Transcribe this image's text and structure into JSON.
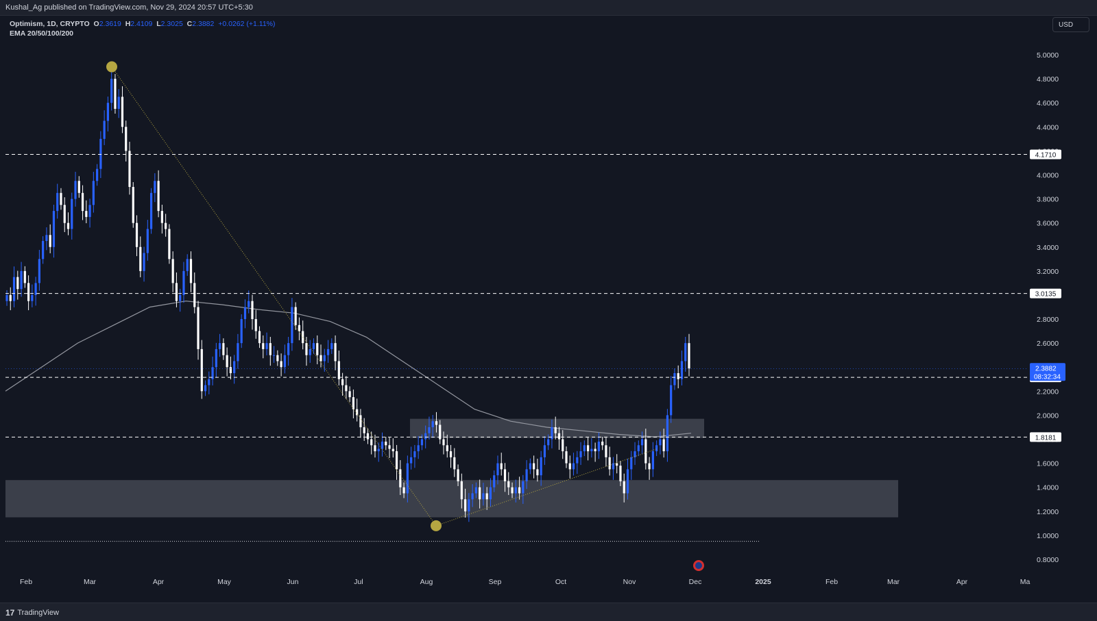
{
  "header": {
    "published": "Kushal_Ag published on TradingView.com, Nov 29, 2024 20:57 UTC+5:30"
  },
  "legend": {
    "symbol": "Optimism, 1D, CRYPTO",
    "o_label": "O",
    "o": "2.3619",
    "h_label": "H",
    "h": "2.4109",
    "l_label": "L",
    "l": "2.3025",
    "c_label": "C",
    "c": "2.3882",
    "change": "+0.0262 (+1.11%)",
    "indicator": "EMA 20/50/100/200"
  },
  "currency": "USD",
  "footer": {
    "brand": "TradingView"
  },
  "chart_data": {
    "type": "candlestick",
    "title": "Optimism, 1D, CRYPTO",
    "y_axis_ticks": [
      "5.0000",
      "4.8000",
      "4.6000",
      "4.4000",
      "4.2000",
      "4.0000",
      "3.8000",
      "3.6000",
      "3.4000",
      "3.2000",
      "3.0000",
      "2.8000",
      "2.6000",
      "2.4000",
      "2.2000",
      "2.0000",
      "1.8000",
      "1.6000",
      "1.4000",
      "1.2000",
      "1.0000",
      "0.8000"
    ],
    "ylim": [
      0.75,
      5.1
    ],
    "x_axis_ticks": [
      "Feb",
      "Mar",
      "Apr",
      "May",
      "Jun",
      "Jul",
      "Aug",
      "Sep",
      "Oct",
      "Nov",
      "Dec",
      "2025",
      "Feb",
      "Mar",
      "Apr",
      "Ma"
    ],
    "horizontal_levels": [
      {
        "price": "4.1710",
        "value": 4.171,
        "style": "dashed"
      },
      {
        "price": "3.0135",
        "value": 3.0135,
        "style": "dashed"
      },
      {
        "price": "2.3153",
        "value": 2.3153,
        "style": "dashed"
      },
      {
        "price": "1.8181",
        "value": 1.8181,
        "style": "dashed"
      }
    ],
    "current_price": {
      "price": "2.3882",
      "countdown": "08:32:34",
      "value": 2.3882
    },
    "zones": [
      {
        "name": "upper-resistance-zone",
        "y_range": [
          1.81,
          1.97
        ]
      },
      {
        "name": "lower-support-zone",
        "y_range": [
          1.15,
          1.46
        ]
      }
    ],
    "bottom_line_level": 0.95,
    "colors": {
      "bg": "#131722",
      "up": "#2962ff",
      "down": "#ffffff",
      "ema": "#9598a1",
      "marker": "#b5a642",
      "label_bg": "#ffffff",
      "current_bg": "#2962ff"
    },
    "close_series": [
      3.0,
      2.95,
      3.15,
      3.05,
      3.2,
      3.1,
      2.95,
      3.0,
      3.1,
      3.3,
      3.45,
      3.5,
      3.4,
      3.7,
      3.85,
      3.75,
      3.6,
      3.55,
      3.8,
      3.95,
      3.85,
      3.7,
      3.65,
      3.75,
      3.95,
      4.05,
      4.3,
      4.45,
      4.6,
      4.8,
      4.55,
      4.65,
      4.4,
      4.2,
      3.9,
      3.6,
      3.4,
      3.2,
      3.35,
      3.55,
      3.85,
      3.95,
      3.7,
      3.6,
      3.55,
      3.3,
      3.1,
      2.95,
      3.0,
      3.2,
      3.3,
      3.1,
      2.9,
      2.55,
      2.2,
      2.25,
      2.3,
      2.4,
      2.55,
      2.6,
      2.5,
      2.4,
      2.35,
      2.45,
      2.6,
      2.8,
      2.9,
      2.95,
      2.8,
      2.7,
      2.6,
      2.55,
      2.6,
      2.5,
      2.5,
      2.45,
      2.4,
      2.5,
      2.6,
      2.9,
      2.75,
      2.7,
      2.6,
      2.5,
      2.55,
      2.6,
      2.5,
      2.45,
      2.5,
      2.55,
      2.6,
      2.45,
      2.3,
      2.25,
      2.2,
      2.15,
      2.05,
      2.0,
      1.9,
      1.85,
      1.8,
      1.75,
      1.7,
      1.72,
      1.78,
      1.75,
      1.72,
      1.7,
      1.55,
      1.4,
      1.35,
      1.6,
      1.65,
      1.7,
      1.75,
      1.8,
      1.85,
      1.9,
      1.95,
      1.92,
      1.8,
      1.75,
      1.7,
      1.65,
      1.55,
      1.45,
      1.3,
      1.2,
      1.3,
      1.35,
      1.4,
      1.3,
      1.35,
      1.3,
      1.4,
      1.5,
      1.6,
      1.55,
      1.45,
      1.4,
      1.35,
      1.4,
      1.35,
      1.45,
      1.55,
      1.6,
      1.55,
      1.5,
      1.65,
      1.75,
      1.8,
      1.9,
      1.85,
      1.8,
      1.7,
      1.6,
      1.55,
      1.6,
      1.65,
      1.7,
      1.75,
      1.7,
      1.72,
      1.7,
      1.78,
      1.75,
      1.65,
      1.55,
      1.6,
      1.58,
      1.45,
      1.35,
      1.55,
      1.65,
      1.7,
      1.75,
      1.8,
      1.6,
      1.55,
      1.7,
      1.75,
      1.8,
      1.7,
      2.0,
      2.25,
      2.35,
      2.3,
      2.45,
      2.6,
      2.3882
    ],
    "ema200_anchor_values": [
      2.2,
      2.4,
      2.6,
      2.75,
      2.9,
      2.95,
      2.92,
      2.88,
      2.85,
      2.78,
      2.65,
      2.45,
      2.25,
      2.05,
      1.95,
      1.9,
      1.87,
      1.84,
      1.82,
      1.85
    ]
  }
}
